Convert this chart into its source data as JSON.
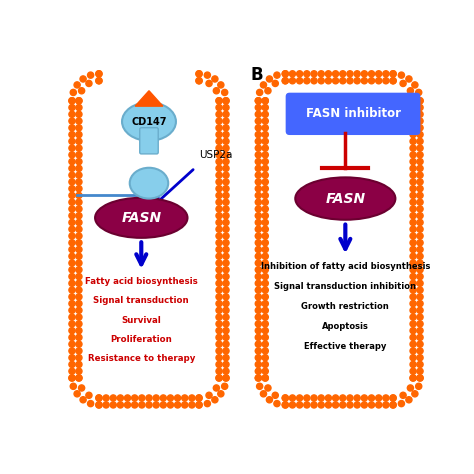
{
  "bg_color": "#ffffff",
  "membrane_color": "#FF6600",
  "panel_a": {
    "cd147_color": "#87CEEB",
    "cd147_stroke": "#6AADCC",
    "cd147_orange": "#FF5500",
    "fasn_color": "#8B0045",
    "fasn_label": "FASN",
    "arrow_color": "#0000CC",
    "usp2a_label": "USP2a",
    "cd147_label": "CD147",
    "output_lines": [
      "Fatty acid biosynthesis",
      "Signal transduction",
      "Survival",
      "Proliferation",
      "Resistance to therapy"
    ],
    "output_color": "#CC0000"
  },
  "panel_b": {
    "label": "B",
    "fasn_inhib_color": "#4466FF",
    "fasn_inhib_label": "FASN inhibitor",
    "fasn_color": "#8B0045",
    "fasn_label": "FASN",
    "inhib_line_color": "#CC0000",
    "down_arrow_color": "#0000CC",
    "output_lines": [
      "Inhibition of fatty acid biosynthesis",
      "Signal transduction inhibition",
      "Growth restriction",
      "Apoptosis",
      "Effective therapy"
    ],
    "output_color": "#000000"
  }
}
